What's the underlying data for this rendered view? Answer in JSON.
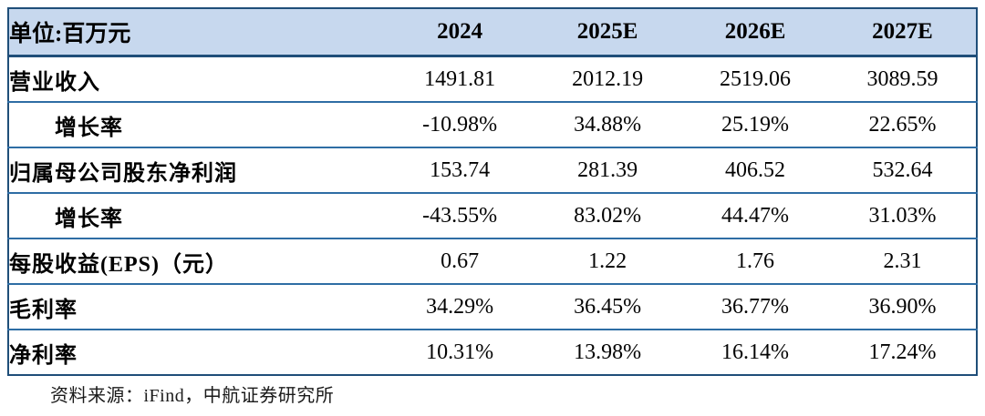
{
  "table": {
    "unit_label": "单位:百万元",
    "columns": [
      "2024",
      "2025E",
      "2026E",
      "2027E"
    ],
    "rows": [
      {
        "label": "营业收入",
        "indent": false,
        "values": [
          "1491.81",
          "2012.19",
          "2519.06",
          "3089.59"
        ]
      },
      {
        "label": "增长率",
        "indent": true,
        "values": [
          "-10.98%",
          "34.88%",
          "25.19%",
          "22.65%"
        ]
      },
      {
        "label": "归属母公司股东净利润",
        "indent": false,
        "values": [
          "153.74",
          "281.39",
          "406.52",
          "532.64"
        ]
      },
      {
        "label": "增长率",
        "indent": true,
        "values": [
          "-43.55%",
          "83.02%",
          "44.47%",
          "31.03%"
        ]
      },
      {
        "label": "每股收益(EPS)（元）",
        "indent": false,
        "values": [
          "0.67",
          "1.22",
          "1.76",
          "2.31"
        ]
      },
      {
        "label": "毛利率",
        "indent": false,
        "values": [
          "34.29%",
          "36.45%",
          "36.77%",
          "36.90%"
        ]
      },
      {
        "label": "净利率",
        "indent": false,
        "values": [
          "10.31%",
          "13.98%",
          "16.14%",
          "17.24%"
        ]
      }
    ]
  },
  "source_note": "资料来源：iFind，中航证券研究所",
  "colors": {
    "header_bg": "#c7d8ee",
    "outer_border": "#1f4e79",
    "row_divider": "#2e6da4",
    "text": "#000000"
  }
}
